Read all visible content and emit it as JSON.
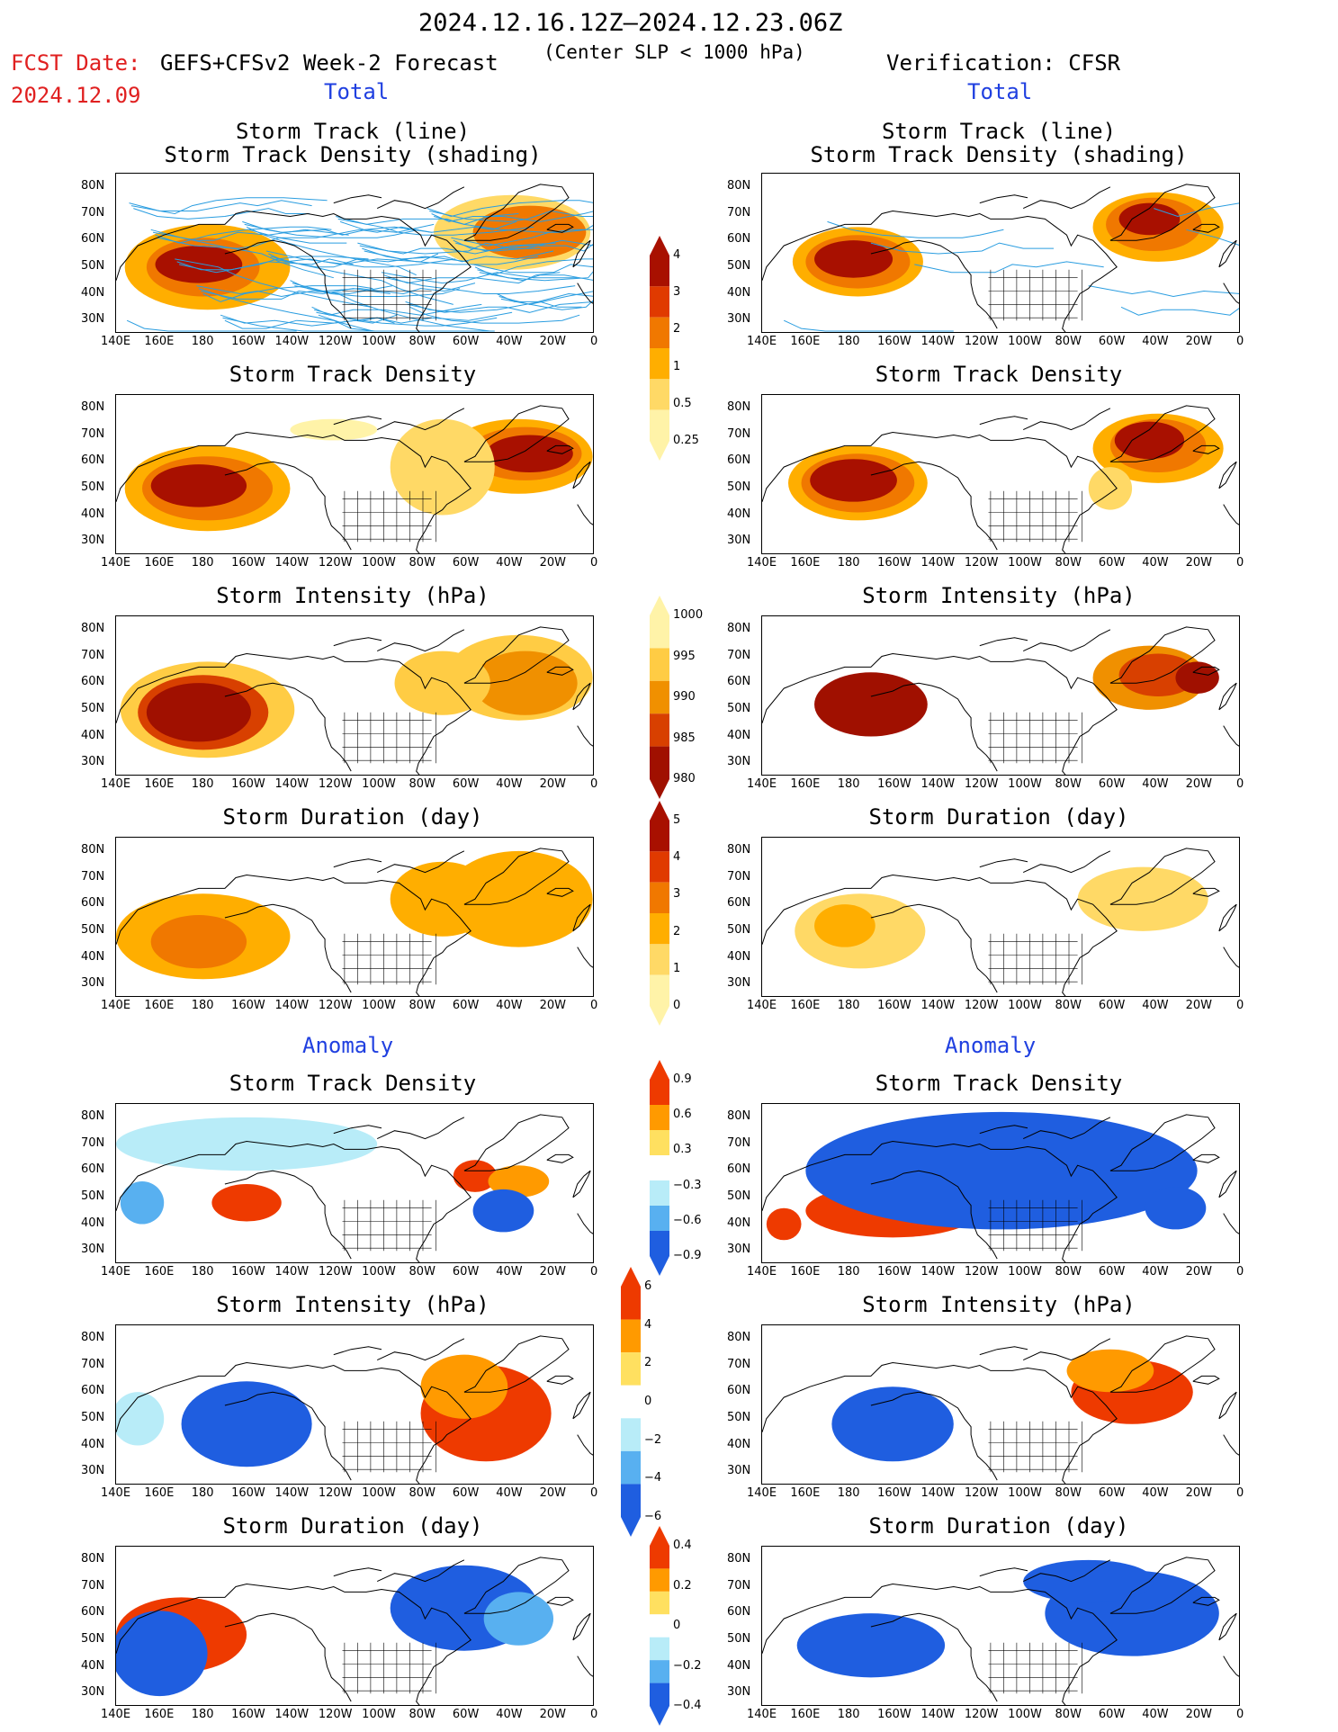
{
  "header": {
    "date_range": "2024.12.16.12Z–2024.12.23.06Z",
    "fcst_label": "FCST Date:",
    "fcst_date": "2024.12.09",
    "forecast_title": "GEFS+CFSv2 Week-2 Forecast",
    "center_note": "(Center SLP < 1000 hPa)",
    "verification": "Verification: CFSR"
  },
  "sections": {
    "total": "Total",
    "anomaly": "Anomaly"
  },
  "panel_titles": {
    "track_line": "Storm Track (line)",
    "track_density_shading": "Storm Track Density (shading)",
    "track_density": "Storm Track Density",
    "intensity": "Storm Intensity (hPa)",
    "duration": "Storm Duration (day)"
  },
  "axes": {
    "lat_labels": [
      "80N",
      "70N",
      "60N",
      "50N",
      "40N",
      "30N"
    ],
    "lon_labels": [
      "140E",
      "160E",
      "180",
      "160W",
      "140W",
      "120W",
      "100W",
      "80W",
      "60W",
      "40W",
      "20W",
      "0"
    ]
  },
  "colorbars": {
    "density": [
      "4",
      "3",
      "2",
      "1",
      "0.5",
      "0.25"
    ],
    "intensity": [
      "1000",
      "995",
      "990",
      "985",
      "980"
    ],
    "duration": [
      "5",
      "4",
      "3",
      "2",
      "1",
      "0"
    ],
    "density_anom": [
      "0.9",
      "0.6",
      "0.3",
      "−0.3",
      "−0.6",
      "−0.9"
    ],
    "intensity_anom": [
      "6",
      "4",
      "2",
      "0",
      "−2",
      "−4",
      "−6"
    ],
    "duration_anom": [
      "0.4",
      "0.2",
      "0",
      "−0.2",
      "−0.4"
    ]
  },
  "colors": {
    "warm": [
      "#fff3a8",
      "#ffd966",
      "#ffae00",
      "#f07800",
      "#e03a00",
      "#a81000"
    ],
    "intensity": [
      "#fff3a8",
      "#ffcc44",
      "#f09000",
      "#d84000",
      "#a01000"
    ],
    "anom_pos": [
      "#ffe060",
      "#ff9a00",
      "#ee3a00"
    ],
    "anom_neg": [
      "#b8ecf8",
      "#58b0f0",
      "#1f5ee0"
    ],
    "track": "#2a9de0"
  }
}
